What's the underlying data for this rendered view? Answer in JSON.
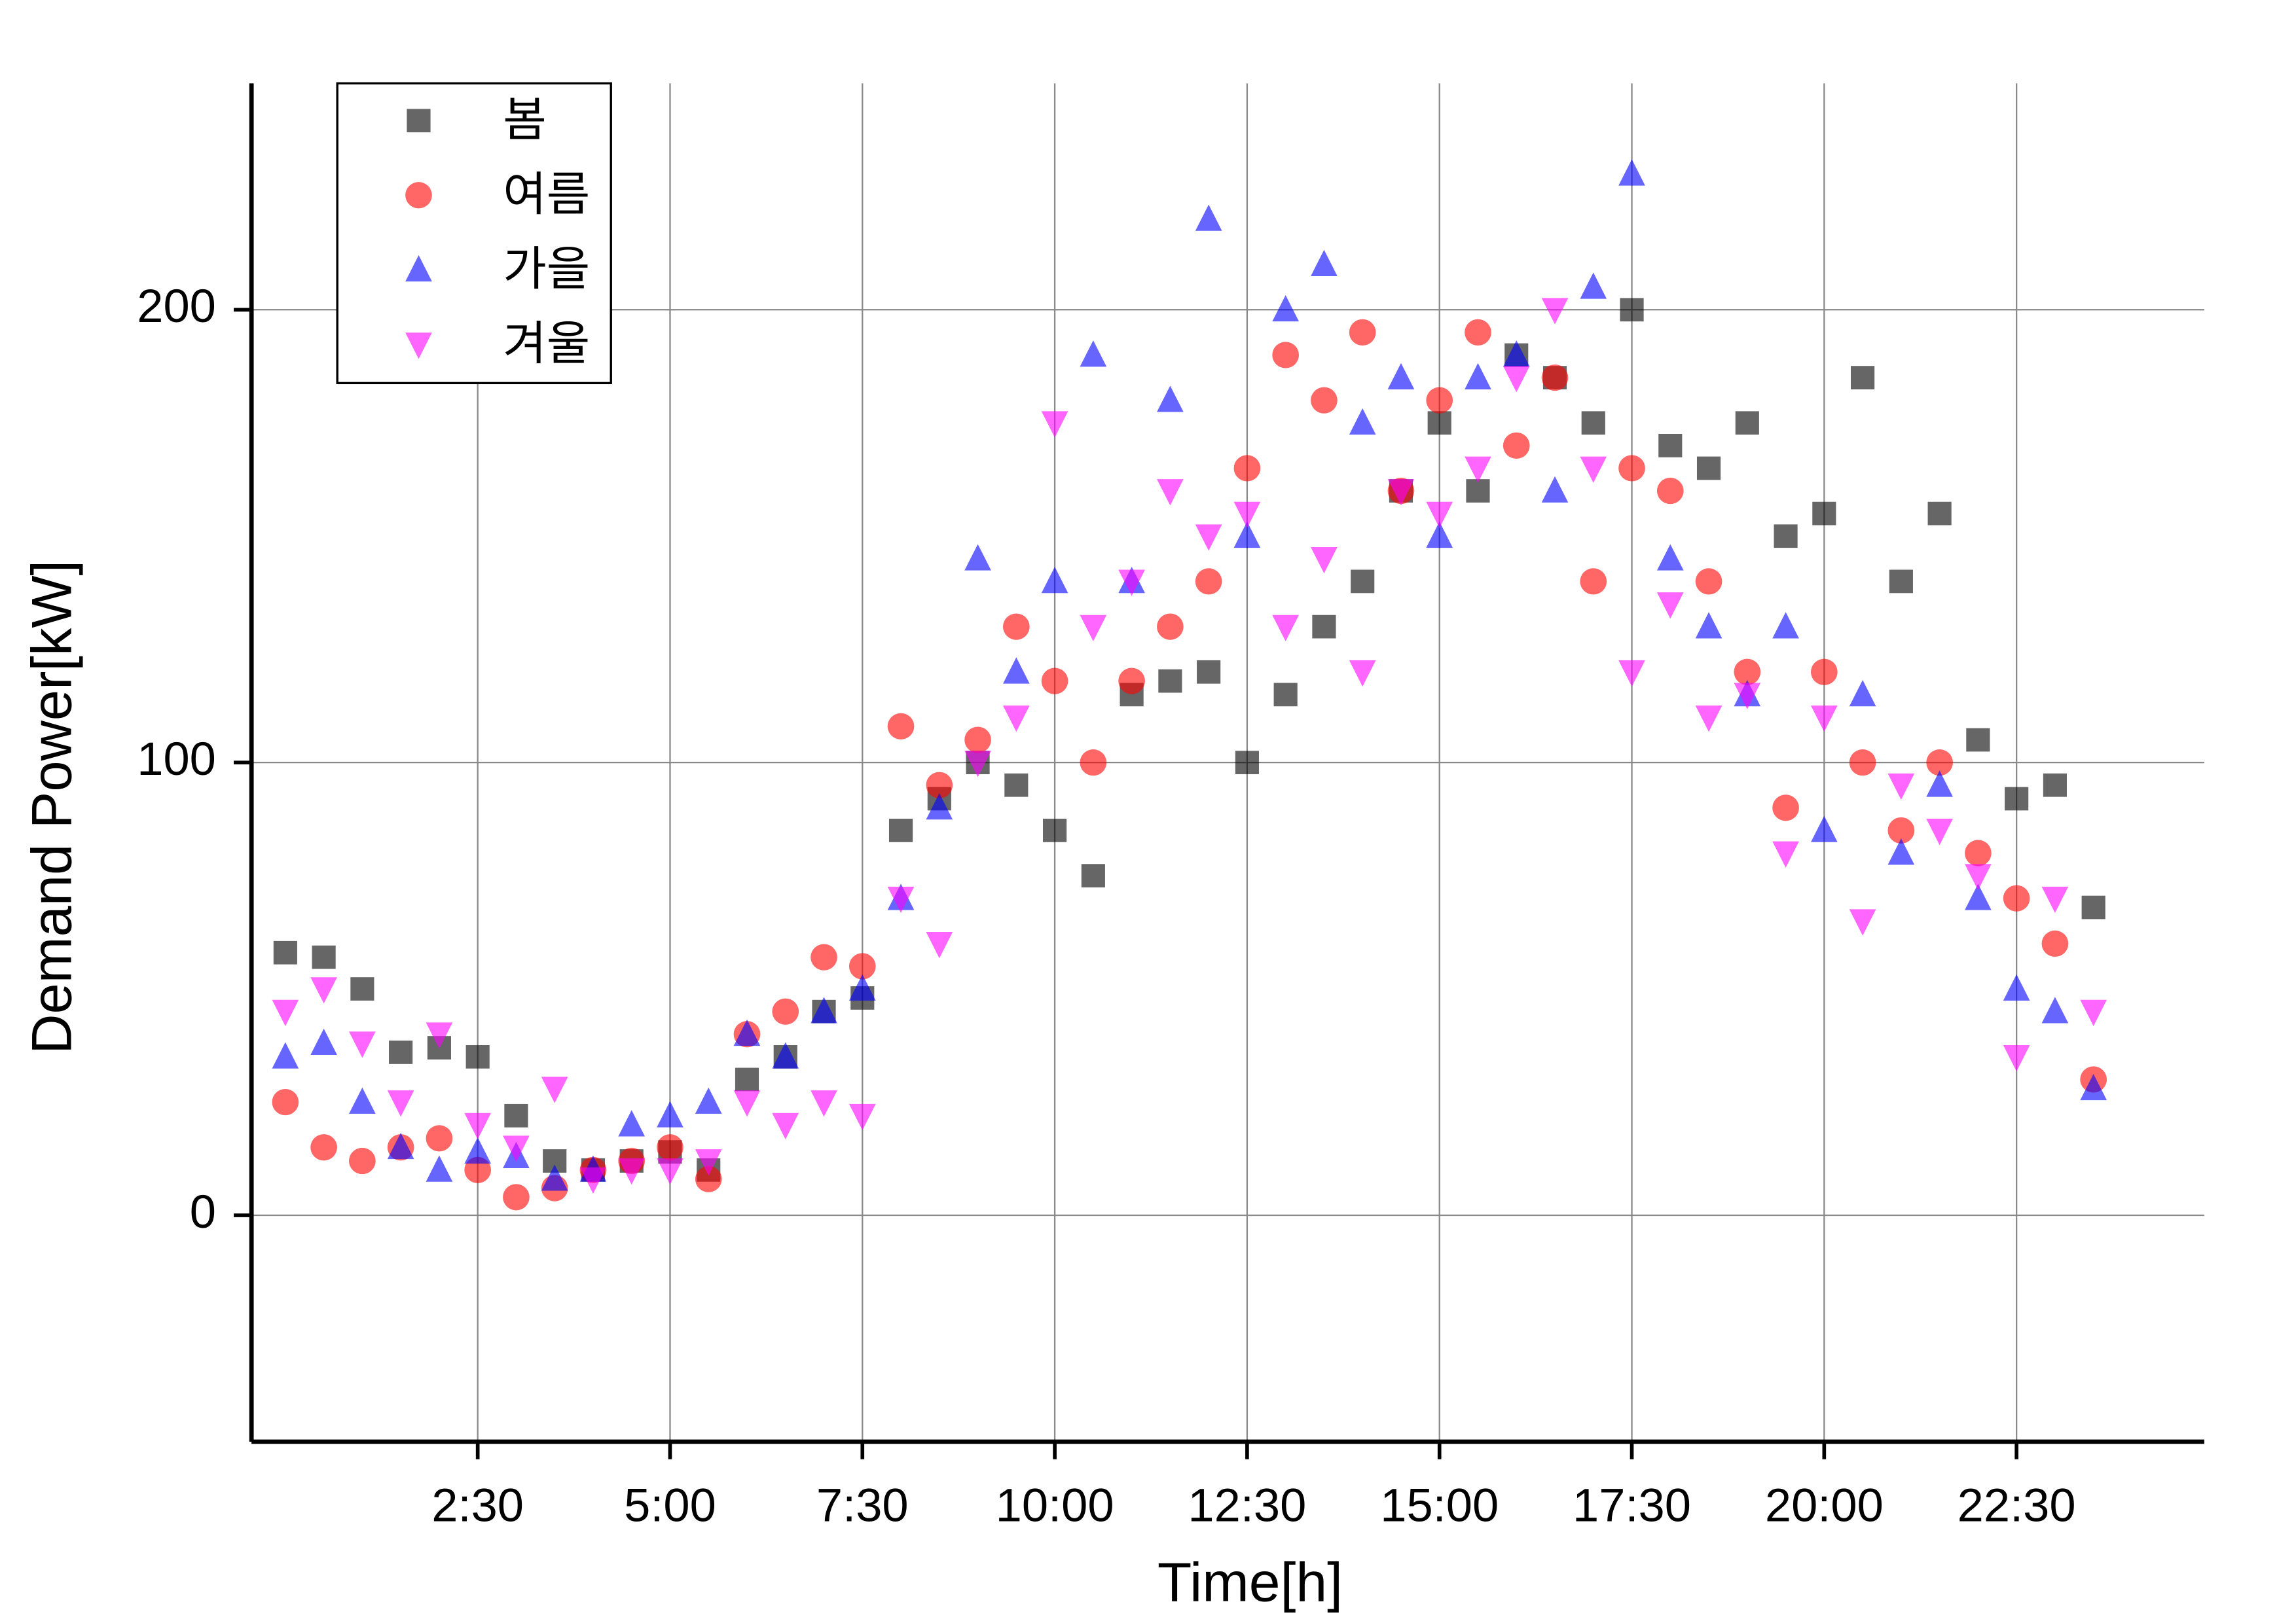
{
  "chart_data": {
    "type": "scatter",
    "xlabel": "Time[h]",
    "ylabel": "Demand Power[kW]",
    "x": [
      0,
      0.5,
      1,
      1.5,
      2,
      2.5,
      3,
      3.5,
      4,
      4.5,
      5,
      5.5,
      6,
      6.5,
      7,
      7.5,
      8,
      8.5,
      9,
      9.5,
      10,
      10.5,
      11,
      11.5,
      12,
      12.5,
      13,
      13.5,
      14,
      14.5,
      15,
      15.5,
      16,
      16.5,
      17,
      17.5,
      18,
      18.5,
      19,
      19.5,
      20,
      20.5,
      21,
      21.5,
      22,
      22.5,
      23,
      23.5
    ],
    "series": [
      {
        "name": "봄",
        "color": "#000000",
        "marker": "square",
        "values": [
          58,
          57,
          50,
          36,
          37,
          35,
          22,
          12,
          10,
          12,
          14,
          10,
          30,
          35,
          45,
          48,
          85,
          92,
          100,
          95,
          85,
          75,
          115,
          118,
          120,
          100,
          115,
          130,
          140,
          160,
          175,
          160,
          190,
          185,
          175,
          200,
          170,
          165,
          175,
          150,
          155,
          185,
          140,
          155,
          105,
          92,
          95,
          68
        ]
      },
      {
        "name": "여름",
        "color": "#ff0000",
        "marker": "circle",
        "values": [
          25,
          15,
          12,
          15,
          17,
          10,
          4,
          6,
          10,
          12,
          15,
          8,
          40,
          45,
          57,
          55,
          108,
          95,
          105,
          130,
          118,
          100,
          118,
          130,
          140,
          165,
          190,
          180,
          195,
          160,
          180,
          195,
          170,
          185,
          140,
          165,
          160,
          140,
          120,
          90,
          120,
          100,
          85,
          100,
          80,
          70,
          60,
          30
        ]
      },
      {
        "name": "가을",
        "color": "#0000ff",
        "marker": "triangle-up",
        "values": [
          35,
          38,
          25,
          15,
          10,
          14,
          13,
          8,
          10,
          20,
          22,
          25,
          40,
          35,
          45,
          50,
          70,
          90,
          145,
          120,
          140,
          190,
          140,
          180,
          220,
          150,
          200,
          210,
          175,
          185,
          150,
          185,
          190,
          160,
          205,
          230,
          145,
          130,
          115,
          130,
          85,
          115,
          80,
          95,
          70,
          50,
          45,
          28
        ]
      },
      {
        "name": "겨울",
        "color": "#ff00ff",
        "marker": "triangle-down",
        "values": [
          45,
          50,
          38,
          25,
          40,
          20,
          15,
          28,
          8,
          10,
          10,
          12,
          25,
          20,
          25,
          22,
          70,
          60,
          100,
          110,
          175,
          130,
          140,
          160,
          150,
          155,
          130,
          145,
          120,
          160,
          155,
          165,
          185,
          200,
          165,
          120,
          135,
          110,
          115,
          80,
          110,
          65,
          95,
          85,
          75,
          35,
          70,
          45
        ]
      }
    ],
    "xlim": [
      -0.44,
      24.94
    ],
    "xticks": [
      {
        "value": 2.5,
        "label": "2:30"
      },
      {
        "value": 5,
        "label": "5:00"
      },
      {
        "value": 7.5,
        "label": "7:30"
      },
      {
        "value": 10,
        "label": "10:00"
      },
      {
        "value": 12.5,
        "label": "12:30"
      },
      {
        "value": 15,
        "label": "15:00"
      },
      {
        "value": 17.5,
        "label": "17:30"
      },
      {
        "value": 20,
        "label": "20:00"
      },
      {
        "value": 22.5,
        "label": "22:30"
      }
    ],
    "ylim": [
      -50,
      250
    ],
    "yticks": [
      0,
      100,
      200
    ],
    "grid": true,
    "legend": "upper left"
  }
}
